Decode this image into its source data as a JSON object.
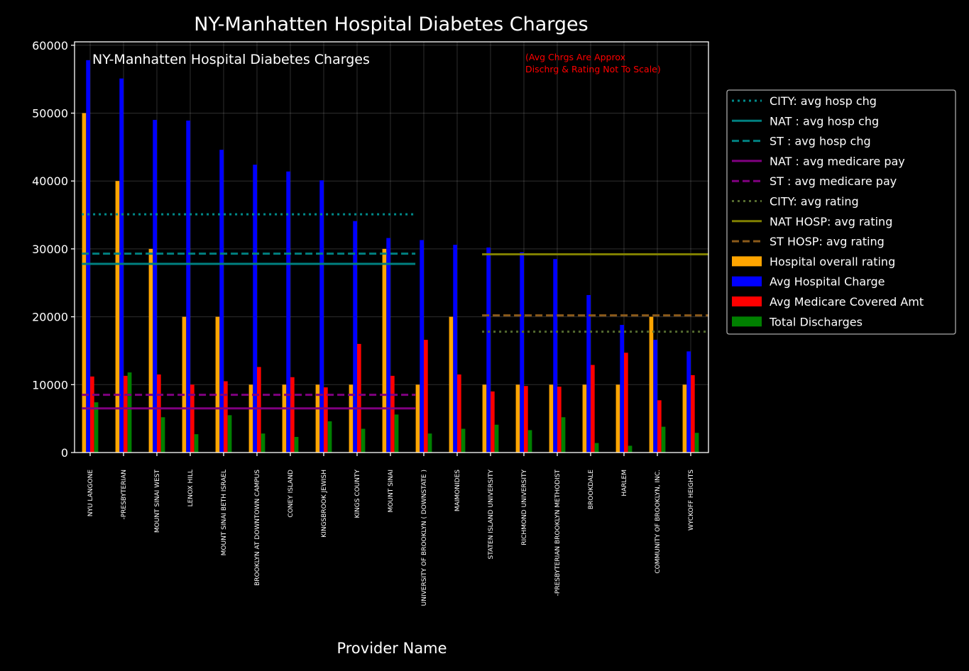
{
  "chart_data": {
    "type": "bar",
    "title": "NY-Manhatten Hospital Diabetes Charges",
    "inner_title": "NY-Manhatten Hospital Diabetes Charges",
    "note_lines": [
      "(Avg Chrgs Are Approx",
      " Dischrg & Rating Not To Scale)"
    ],
    "xlabel": "Provider Name",
    "ylabel": "",
    "ylim": [
      0,
      60500
    ],
    "yticks": [
      0,
      10000,
      20000,
      30000,
      40000,
      50000,
      60000
    ],
    "grid": true,
    "legend_position": "outside-right",
    "categories": [
      "NYU LANGONE",
      "-PRESBYTERIAN",
      "MOUNT SINAI WEST",
      "LENOX HILL",
      "MOUNT SINAI BETH ISRAEL",
      "BROOKLYN    AT DOWNTOWN CAMPUS",
      "CONEY ISLAND",
      "KINGSBROOK JEWISH",
      "KINGS COUNTY",
      "MOUNT SINAI",
      "UNIVERSITY  OF BROOKLYN ( DOWNSTATE )",
      "MAIMONIDES",
      "STATEN ISLAND UNIVERSITY",
      "RICHMOND UNIVERSITY",
      "-PRESBYTERIAN BROOKLYN METHODIST",
      "BROOKDALE",
      "HARLEM",
      "COMMUNITY  OF BROOKLYN, INC.",
      "WYCKOFF HEIGHTS"
    ],
    "series": [
      {
        "name": "Hospital overall rating",
        "color": "#ffa500",
        "values": [
          50000,
          40000,
          30000,
          20000,
          20000,
          10000,
          10000,
          10000,
          10000,
          30000,
          10000,
          20000,
          10000,
          10000,
          10000,
          10000,
          10000,
          20000,
          10000
        ]
      },
      {
        "name": "Avg Hospital Charge",
        "color": "#0000ff",
        "values": [
          57800,
          55100,
          49000,
          48900,
          44600,
          42400,
          41400,
          40100,
          34100,
          31600,
          31300,
          30600,
          30200,
          29500,
          28500,
          23200,
          18800,
          16600,
          14900
        ]
      },
      {
        "name": "Avg Medicare Covered Amt",
        "color": "#ff0000",
        "values": [
          11200,
          11300,
          11500,
          10000,
          10500,
          12600,
          11100,
          9600,
          16000,
          11300,
          16600,
          11500,
          9000,
          9800,
          9700,
          12900,
          14700,
          7700,
          11400
        ]
      },
      {
        "name": "Total Discharges",
        "color": "#008000",
        "values": [
          7400,
          11800,
          5200,
          2700,
          5500,
          2800,
          2300,
          4600,
          3500,
          5600,
          2800,
          3500,
          4100,
          3300,
          5200,
          1400,
          1000,
          3800,
          2900
        ]
      }
    ],
    "reference_lines": [
      {
        "name": "CITY: avg hosp chg",
        "color": "#008b8b",
        "style": "dotted",
        "value": 35100,
        "from_index": 0,
        "to_index": 10
      },
      {
        "name": "NAT : avg hosp chg",
        "color": "#008080",
        "style": "solid",
        "value": 27800,
        "from_index": 0,
        "to_index": 10
      },
      {
        "name": "ST   : avg hosp chg",
        "color": "#008080",
        "style": "dashed",
        "value": 29300,
        "from_index": 0,
        "to_index": 10
      },
      {
        "name": "NAT : avg medicare pay",
        "color": "#800080",
        "style": "solid",
        "value": 6500,
        "from_index": 0,
        "to_index": 10
      },
      {
        "name": "ST   : avg medicare pay",
        "color": "#800080",
        "style": "dashed",
        "value": 8500,
        "from_index": 0,
        "to_index": 10
      },
      {
        "name": "CITY: avg rating",
        "color": "#556b2f",
        "style": "dotted",
        "value": 17800,
        "from_index": 12,
        "to_index": 19
      },
      {
        "name": "NAT HOSP: avg rating",
        "color": "#808000",
        "style": "solid",
        "value": 29200,
        "from_index": 12,
        "to_index": 19
      },
      {
        "name": "ST  HOSP: avg rating",
        "color": "#8b5a1a",
        "style": "dashed",
        "value": 20200,
        "from_index": 12,
        "to_index": 19
      }
    ]
  }
}
